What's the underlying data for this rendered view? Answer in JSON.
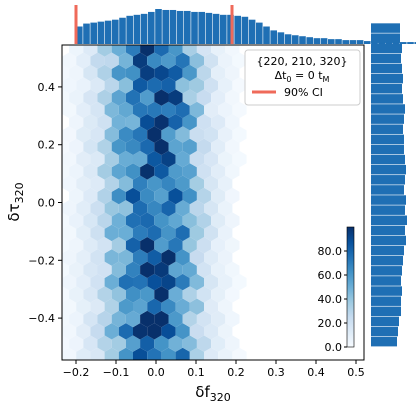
{
  "chart_data": {
    "type": "hexbin",
    "xlabel_main": "δf",
    "xlabel_sub": "320",
    "ylabel_main": "δτ",
    "ylabel_sub": "320",
    "xlim": [
      -0.235,
      0.52
    ],
    "ylim": [
      -0.545,
      0.545
    ],
    "xticks": [
      -0.2,
      -0.1,
      0.0,
      0.1,
      0.2,
      0.3,
      0.4,
      0.5
    ],
    "xtick_labels": [
      "−0.2",
      "−0.1",
      "0.0",
      "0.1",
      "0.2",
      "0.3",
      "0.4",
      "0.5"
    ],
    "yticks": [
      -0.4,
      -0.2,
      0.0,
      0.2,
      0.4
    ],
    "ytick_labels": [
      "−0.4",
      "−0.2",
      "0.0",
      "0.2",
      "0.4"
    ],
    "colorbar": {
      "vmin": 0,
      "vmax": 100,
      "ticks": [
        0,
        20,
        40,
        60,
        80
      ],
      "tick_labels": [
        "0.0",
        "20.0",
        "40.0",
        "60.0",
        "80.0"
      ],
      "colormap": [
        "#f7fbff",
        "#deebf7",
        "#c6dbef",
        "#9ecae1",
        "#6baed6",
        "#4292c6",
        "#2171b5",
        "#08519c",
        "#08306b"
      ]
    },
    "legend": {
      "placement": "top-right",
      "line1": "{220, 210, 320}",
      "line2_main": "Δt",
      "line2_sub": "0",
      "line2_mid": " = 0 t",
      "line2_sub2": "M",
      "ci_label": "90% CI"
    },
    "ci_bounds_x": [
      -0.2,
      0.19
    ],
    "ci_color": "#ef6a5a",
    "bar_color": "#1f6fb4",
    "marginal_x": {
      "start": -0.2,
      "bin_width": 0.018,
      "counts": [
        18,
        21,
        22,
        23,
        24,
        25,
        27,
        29,
        30,
        31,
        33,
        36,
        35,
        35,
        34,
        34,
        33,
        33,
        32,
        31,
        30,
        30,
        29,
        28,
        25,
        22,
        18,
        14,
        12,
        10,
        9,
        8,
        7,
        6,
        6,
        5,
        5,
        4,
        4,
        4,
        3,
        3,
        3,
        3,
        2,
        2,
        2,
        2,
        1,
        1,
        1,
        1
      ]
    },
    "marginal_y": {
      "start": -0.5,
      "bin_width": 0.035,
      "counts": [
        26,
        27,
        28,
        30,
        30,
        31,
        30,
        31,
        32,
        33,
        35,
        34,
        36,
        34,
        35,
        33,
        34,
        35,
        34,
        33,
        33,
        32,
        33,
        34,
        32,
        31,
        32,
        31,
        30,
        31,
        29,
        29
      ]
    },
    "density_model": {
      "sx_left": 0.085,
      "sx_right": 0.075,
      "cx": 0.0,
      "max_counts": 88,
      "noise_amp": 0.35
    }
  }
}
